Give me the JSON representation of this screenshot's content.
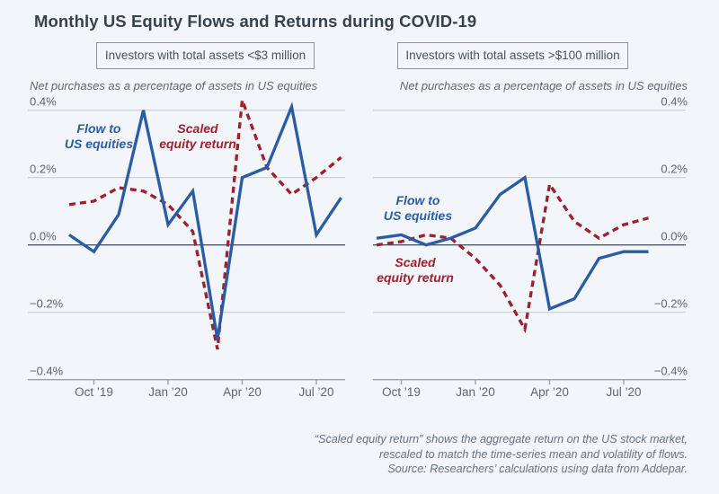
{
  "title": "Monthly US Equity Flows and Returns during COVID-19",
  "panels": [
    {
      "header": "Investors with total assets <$3 million",
      "subtitle": "Net purchases as a percentage of assets in US equities",
      "flow_label": [
        "Flow to",
        "US equities"
      ],
      "return_label": [
        "Scaled",
        "equity return"
      ]
    },
    {
      "header": "Investors with total assets >$100 million",
      "subtitle": "Net purchases as a percentage of assets in US equities",
      "flow_label": [
        "Flow to",
        "US equities"
      ],
      "return_label": [
        "Scaled",
        "equity return"
      ]
    }
  ],
  "footnote": [
    "“Scaled equity return” shows the aggregate return on the US stock market,",
    "rescaled to match the time-series mean and volatility of flows.",
    "Source: Researchers’ calculations using data from Addepar."
  ],
  "colors": {
    "flow": "#2a5ba5",
    "return": "#9e1f2e",
    "background": "#f2f5f9",
    "title_text": "#37424d",
    "grid": "#c9ced6",
    "zero_line": "#4f5a66",
    "axis": "#9aa2ac",
    "tick_text": "#5d6671"
  },
  "chart_data": [
    {
      "type": "line",
      "title": "Investors with total assets <$3 million",
      "subtitle": "Net purchases as a percentage of assets in US equities",
      "unit": "percent of assets in US equities per month",
      "x": [
        "Sep ’19",
        "Oct ’19",
        "Nov ’19",
        "Dec ’19",
        "Jan ’20",
        "Feb ’20",
        "Mar ’20",
        "Apr ’20",
        "May ’20",
        "Jun ’20",
        "Jul ’20",
        "Aug ’20"
      ],
      "xticks_shown": [
        "Oct ’19",
        "Jan ’20",
        "Apr ’20",
        "Jul ’20"
      ],
      "yticks": [
        0.4,
        0.2,
        0.0,
        -0.2,
        -0.4
      ],
      "ytick_labels": [
        "0.4%",
        "0.2%",
        "0.0%",
        "−0.2%",
        "−0.4%"
      ],
      "ylim": [
        -0.4,
        0.45
      ],
      "grid": true,
      "legend_position": "inline-annotations",
      "series": [
        {
          "name": "Flow to US equities",
          "color_key": "flow",
          "style": "solid",
          "values": [
            0.03,
            -0.02,
            0.09,
            0.4,
            0.06,
            0.16,
            -0.28,
            0.2,
            0.23,
            0.41,
            0.03,
            0.14
          ]
        },
        {
          "name": "Scaled equity return",
          "color_key": "return",
          "style": "dashed",
          "values": [
            0.12,
            0.13,
            0.17,
            0.16,
            0.12,
            0.04,
            -0.31,
            0.43,
            0.23,
            0.15,
            0.2,
            0.26
          ]
        }
      ]
    },
    {
      "type": "line",
      "title": "Investors with total assets >$100 million",
      "subtitle": "Net purchases as a percentage of assets in US equities",
      "unit": "percent of assets in US equities per month",
      "x": [
        "Sep ’19",
        "Oct ’19",
        "Nov ’19",
        "Dec ’19",
        "Jan ’20",
        "Feb ’20",
        "Mar ’20",
        "Apr ’20",
        "May ’20",
        "Jun ’20",
        "Jul ’20",
        "Aug ’20"
      ],
      "xticks_shown": [
        "Oct ’19",
        "Jan ’20",
        "Apr ’20",
        "Jul ’20"
      ],
      "yticks": [
        0.4,
        0.2,
        0.0,
        -0.2,
        -0.4
      ],
      "ytick_labels": [
        "0.4%",
        "0.2%",
        "0.0%",
        "−0.2%",
        "−0.4%"
      ],
      "ylim": [
        -0.4,
        0.45
      ],
      "grid": true,
      "legend_position": "inline-annotations",
      "series": [
        {
          "name": "Flow to US equities",
          "color_key": "flow",
          "style": "solid",
          "values": [
            0.02,
            0.03,
            0.0,
            0.02,
            0.05,
            0.15,
            0.2,
            -0.19,
            -0.16,
            -0.04,
            -0.02,
            -0.02
          ]
        },
        {
          "name": "Scaled equity return",
          "color_key": "return",
          "style": "dashed",
          "values": [
            0.0,
            0.01,
            0.03,
            0.02,
            -0.04,
            -0.12,
            -0.25,
            0.18,
            0.07,
            0.02,
            0.06,
            0.08
          ]
        }
      ]
    }
  ]
}
